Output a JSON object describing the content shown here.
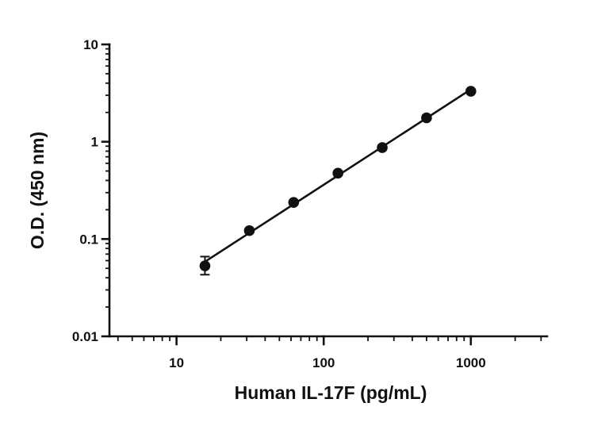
{
  "chart_data": {
    "type": "scatter",
    "xlabel": "Human IL-17F (pg/mL)",
    "ylabel": "O.D. (450 nm)",
    "x_scale": "log",
    "y_scale": "log",
    "xlim": [
      3.5,
      3300
    ],
    "ylim": [
      0.01,
      10
    ],
    "x_ticks": [
      {
        "value": 10,
        "label": "10"
      },
      {
        "value": 100,
        "label": "100"
      },
      {
        "value": 1000,
        "label": "1000"
      }
    ],
    "y_ticks": [
      {
        "value": 0.01,
        "label": "0.01"
      },
      {
        "value": 0.1,
        "label": "0.1"
      },
      {
        "value": 1,
        "label": "1"
      },
      {
        "value": 10,
        "label": "10"
      }
    ],
    "grid": false,
    "series": [
      {
        "points": [
          {
            "x": 15.6,
            "y": 0.053,
            "err_low": 0.043,
            "err_high": 0.066
          },
          {
            "x": 31.25,
            "y": 0.122
          },
          {
            "x": 62.5,
            "y": 0.238
          },
          {
            "x": 125,
            "y": 0.475
          },
          {
            "x": 250,
            "y": 0.87
          },
          {
            "x": 500,
            "y": 1.76
          },
          {
            "x": 1000,
            "y": 3.3
          }
        ],
        "fit_line": {
          "x_start": 15.6,
          "x_end": 1000
        }
      }
    ]
  }
}
